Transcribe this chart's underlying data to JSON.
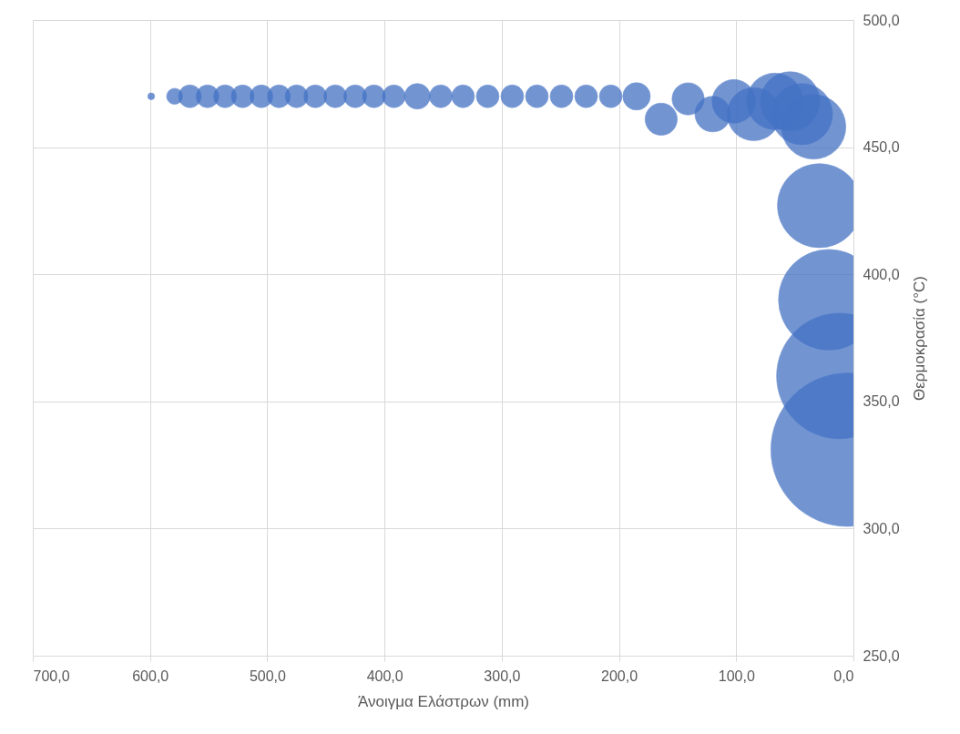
{
  "chart_data": {
    "type": "bubble",
    "xlabel": "Άνοιγμα Ελάστρων (mm)",
    "ylabel": "Θερμοκρασία (°C)",
    "x": [
      599,
      579,
      566,
      551,
      536,
      521,
      505,
      490,
      475,
      459,
      442,
      425,
      409,
      392,
      372,
      352,
      333,
      312,
      291,
      270,
      249,
      228,
      207,
      185,
      164,
      141,
      120,
      102,
      85,
      67,
      54,
      44,
      34,
      29,
      21,
      12,
      5
    ],
    "series": [
      {
        "color": "#4472c4",
        "values": [
          470,
          470,
          470,
          470,
          470,
          470,
          470,
          470,
          470,
          470,
          470,
          470,
          470,
          470,
          470,
          470,
          470,
          470,
          470,
          470,
          470,
          470,
          470,
          470,
          461,
          469,
          463,
          468,
          463,
          468,
          468,
          463,
          458,
          427,
          390,
          360,
          331
        ],
        "sizes": [
          0.002,
          0.011,
          0.022,
          0.022,
          0.022,
          0.022,
          0.022,
          0.022,
          0.022,
          0.022,
          0.022,
          0.022,
          0.022,
          0.022,
          0.028,
          0.022,
          0.022,
          0.022,
          0.022,
          0.022,
          0.022,
          0.022,
          0.022,
          0.032,
          0.044,
          0.044,
          0.054,
          0.081,
          0.12,
          0.136,
          0.15,
          0.16,
          0.177,
          0.3,
          0.43,
          0.67,
          1
        ]
      }
    ],
    "xlim": [
      700,
      0
    ],
    "xticks": [
      {
        "value": 700,
        "label": "700,0"
      },
      {
        "value": 600,
        "label": "600,0"
      },
      {
        "value": 500,
        "label": "500,0"
      },
      {
        "value": 400,
        "label": "400,0"
      },
      {
        "value": 300,
        "label": "300,0"
      },
      {
        "value": 200,
        "label": "200,0"
      },
      {
        "value": 100,
        "label": "100,0"
      },
      {
        "value": 0,
        "label": "0,0"
      }
    ],
    "ylim": [
      250,
      500
    ],
    "yticks": [
      {
        "value": 250,
        "label": "250,0"
      },
      {
        "value": 300,
        "label": "300,0"
      },
      {
        "value": 350,
        "label": "350,0"
      },
      {
        "value": 400,
        "label": "400,0"
      },
      {
        "value": 450,
        "label": "450,0"
      },
      {
        "value": 500,
        "label": "500,0"
      }
    ],
    "grid": true,
    "legend": false
  }
}
